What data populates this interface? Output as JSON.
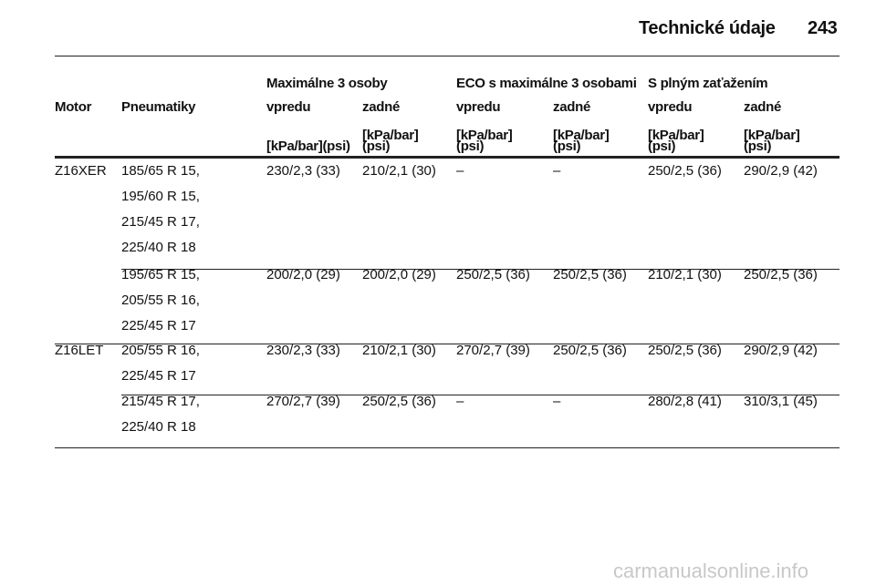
{
  "header": {
    "title": "Technické údaje",
    "page": "243"
  },
  "table": {
    "group_headers": [
      "Maximálne 3 osoby",
      "ECO s maximálne 3 osobami",
      "S plným zaťažením"
    ],
    "columns": [
      "Motor",
      "Pneumatiky",
      "vpredu",
      "zadné",
      "vpredu",
      "zadné",
      "vpredu",
      "zadné"
    ],
    "units": [
      "[kPa/bar](psi)",
      "[kPa/bar]\n(psi)",
      "[kPa/bar]\n(psi)",
      "[kPa/bar]\n(psi)",
      "[kPa/bar]\n(psi)",
      "[kPa/bar]\n(psi)"
    ],
    "rows": [
      {
        "motor": "Z16XER",
        "tires": [
          "185/65 R 15,",
          "195/60 R 15,",
          "215/45 R 17,",
          "225/40 R 18"
        ],
        "values": [
          "230/2,3 (33)",
          "210/2,1 (30)",
          "–",
          "–",
          "250/2,5 (36)",
          "290/2,9 (42)"
        ]
      },
      {
        "tires": [
          "195/65 R 15,",
          "205/55 R 16,",
          "225/45 R 17"
        ],
        "values": [
          "200/2,0 (29)",
          "200/2,0 (29)",
          "250/2,5 (36)",
          "250/2,5 (36)",
          "210/2,1 (30)",
          "250/2,5 (36)"
        ]
      },
      {
        "motor": "Z16LET",
        "tires": [
          "205/55 R 16,",
          "225/45 R 17"
        ],
        "values": [
          "230/2,3 (33)",
          "210/2,1 (30)",
          "270/2,7 (39)",
          "250/2,5 (36)",
          "250/2,5 (36)",
          "290/2,9 (42)"
        ]
      },
      {
        "tires": [
          "215/45 R 17,",
          "225/40 R 18"
        ],
        "values": [
          "270/2,7 (39)",
          "250/2,5 (36)",
          "–",
          "–",
          "280/2,8 (41)",
          "310/3,1 (45)"
        ]
      }
    ]
  },
  "watermark": "carmanualsonline.info"
}
